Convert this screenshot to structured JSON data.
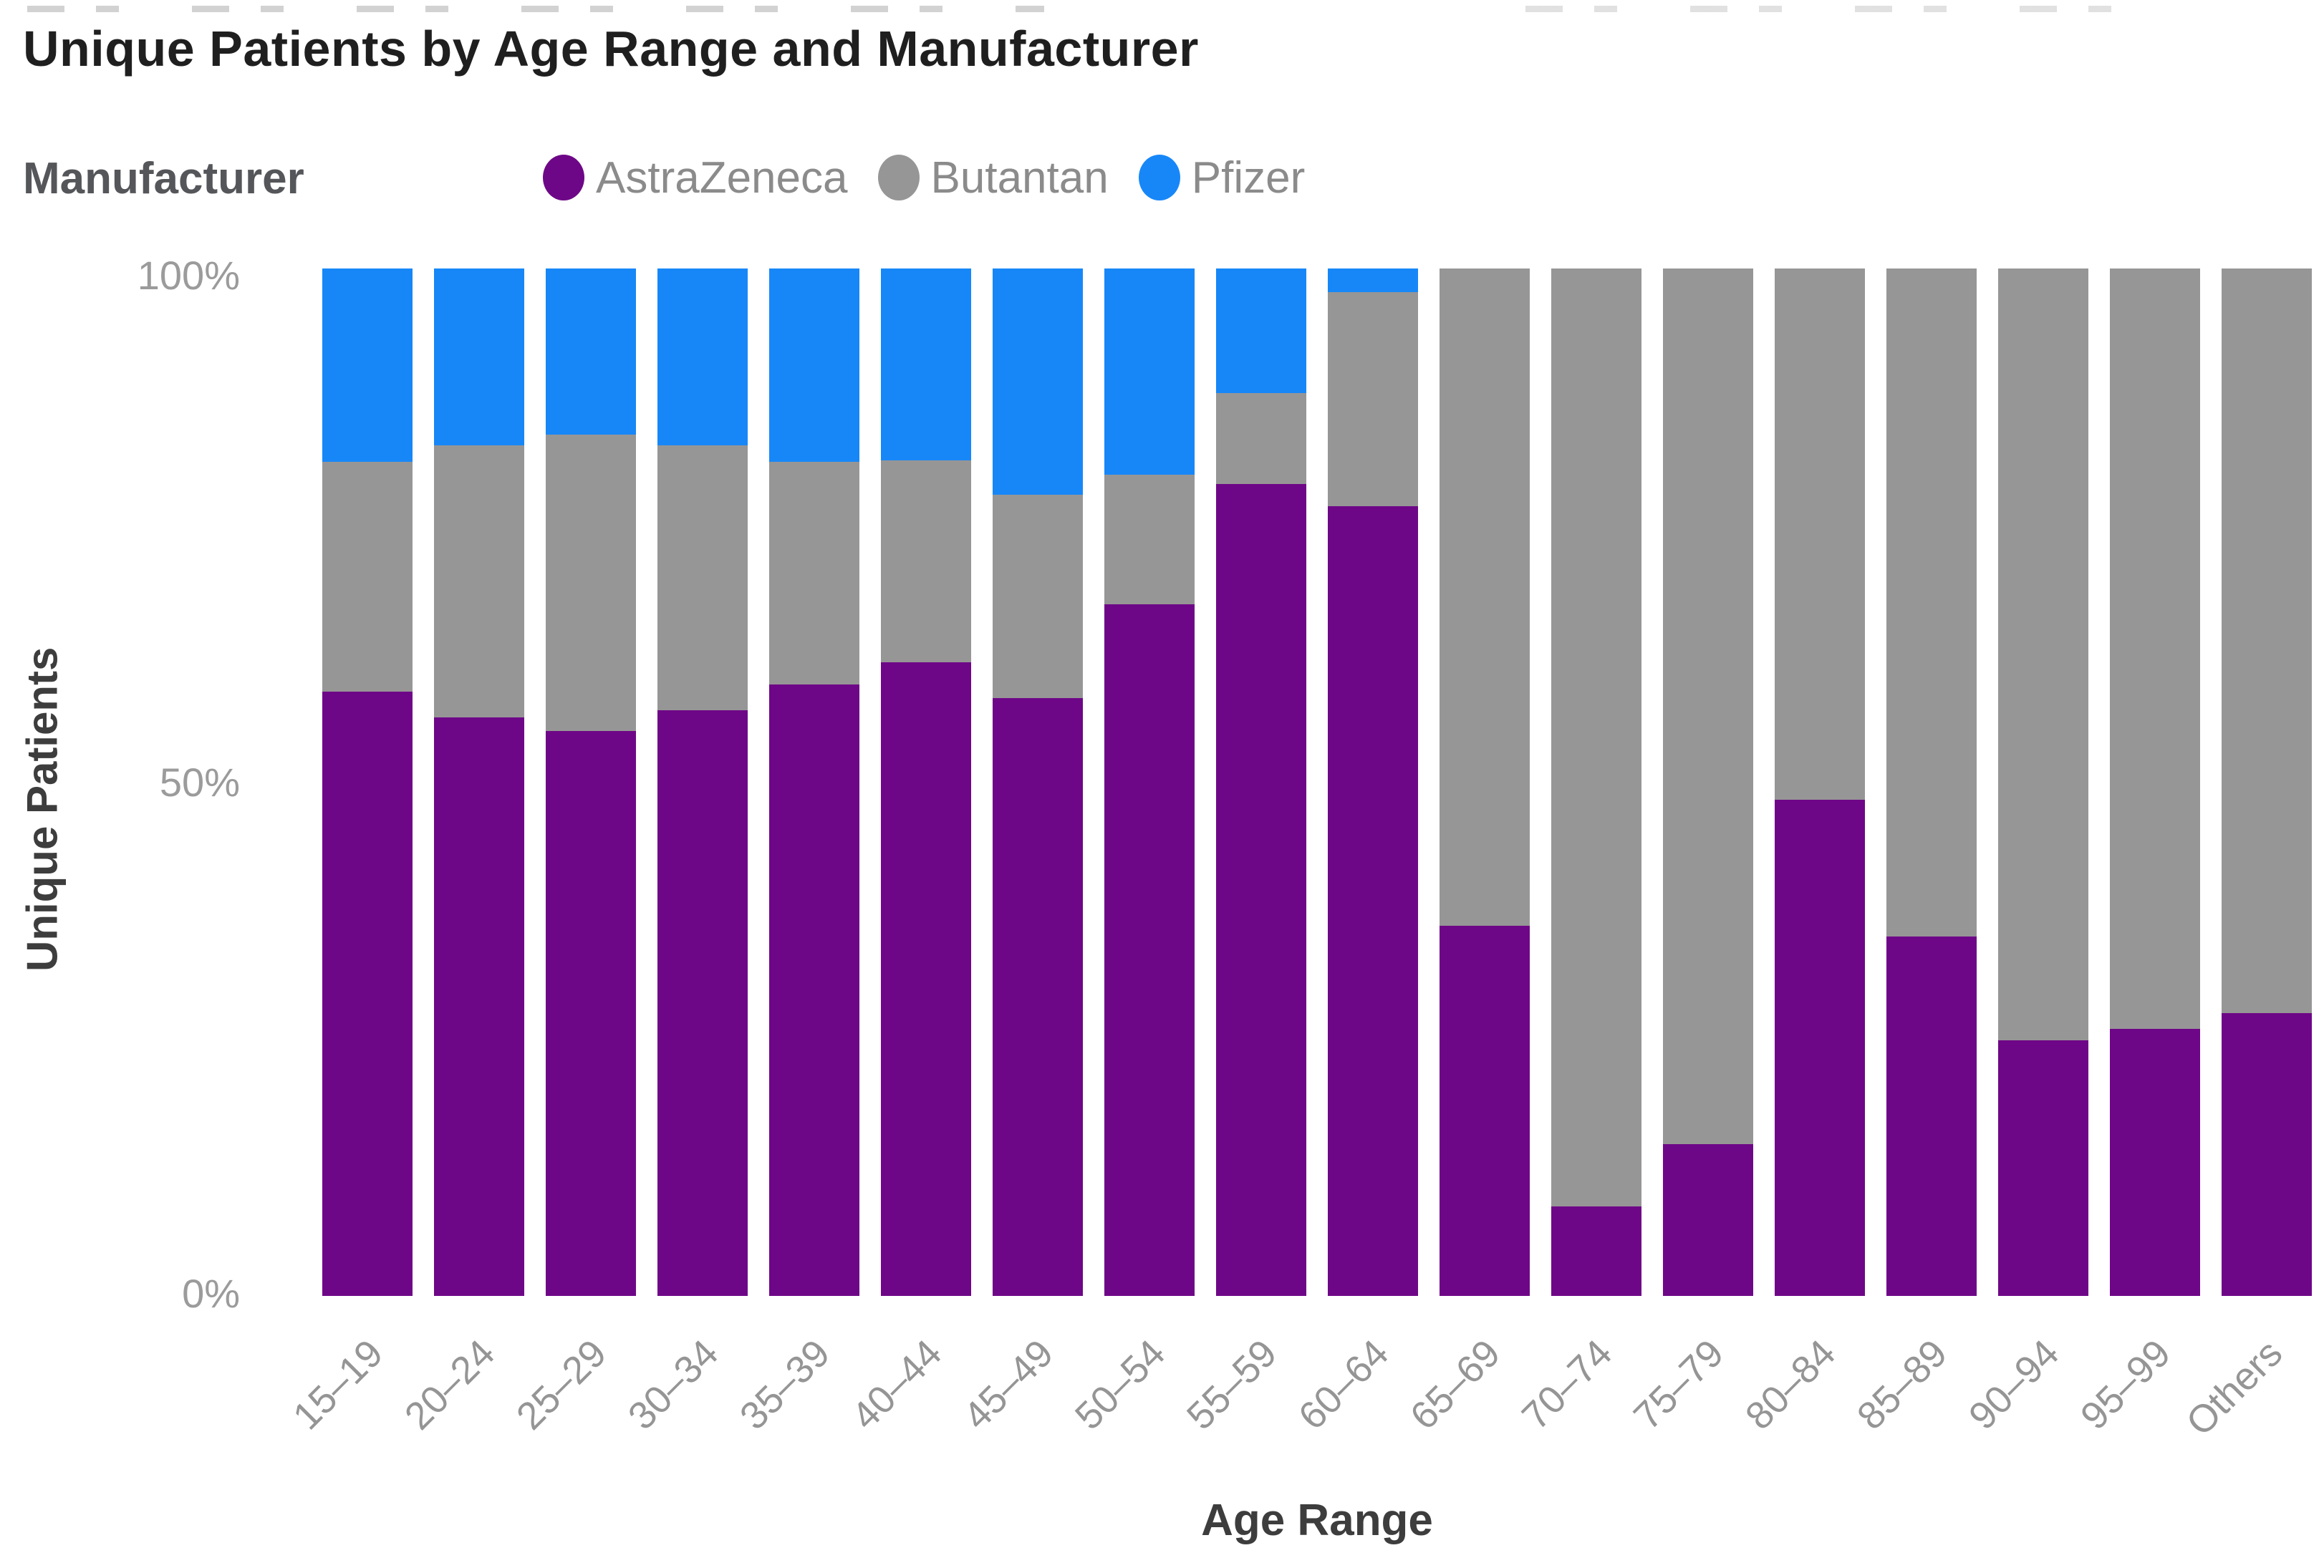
{
  "page": {
    "title": "Unique Patients by Age Range and Manufacturer"
  },
  "legend": {
    "title": "Manufacturer",
    "items": [
      {
        "label": "AstraZeneca",
        "color": "#6E0787"
      },
      {
        "label": "Butantan",
        "color": "#969696"
      },
      {
        "label": "Pfizer",
        "color": "#1787F8"
      }
    ]
  },
  "chart_data": {
    "type": "bar",
    "stacked": true,
    "normalized": "percent",
    "title": "Unique Patients by Age Range and Manufacturer",
    "xlabel": "Age Range",
    "ylabel": "Unique Patients",
    "ylim": [
      0,
      100
    ],
    "yticks": [
      "100%",
      "50%",
      "0%"
    ],
    "grid": false,
    "legend_position": "top",
    "categories": [
      "15–19",
      "20–24",
      "25–29",
      "30–34",
      "35–39",
      "40–44",
      "45–49",
      "50–54",
      "55–59",
      "60–64",
      "65–69",
      "70–74",
      "75–79",
      "80–84",
      "85–89",
      "90–94",
      "95–99",
      "Others"
    ],
    "series": [
      {
        "name": "AstraZeneca",
        "color": "#6E0787",
        "values": [
          58.8,
          56.3,
          55.0,
          57.0,
          59.5,
          61.7,
          58.2,
          67.3,
          79.0,
          76.9,
          36.0,
          8.7,
          14.8,
          48.3,
          35.0,
          24.9,
          26.0,
          27.5
        ]
      },
      {
        "name": "Butantan",
        "color": "#969696",
        "values": [
          22.4,
          26.5,
          28.8,
          25.8,
          21.7,
          19.6,
          19.8,
          12.6,
          8.9,
          20.8,
          64.0,
          91.3,
          85.2,
          51.7,
          65.0,
          75.1,
          74.0,
          72.5
        ]
      },
      {
        "name": "Pfizer",
        "color": "#1787F8",
        "values": [
          18.8,
          17.2,
          16.2,
          17.2,
          18.8,
          18.7,
          22.0,
          20.1,
          12.1,
          2.3,
          0,
          0,
          0,
          0,
          0,
          0,
          0,
          0
        ]
      }
    ]
  }
}
